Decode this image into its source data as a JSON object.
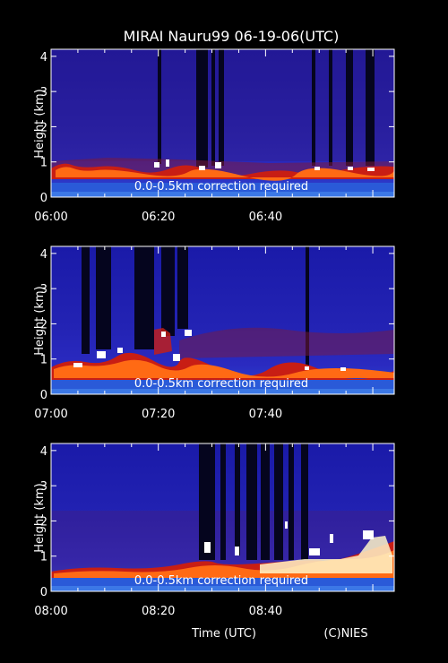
{
  "title": "MIRAI Nauru99 06-19-06(UTC)",
  "xlabel": "Time (UTC)",
  "credit": "(C)NIES",
  "chart_data": [
    {
      "type": "heatmap",
      "ylabel": "Height (km)",
      "yticks": [
        "0",
        "1",
        "2",
        "3",
        "4"
      ],
      "ylim": [
        0,
        4.2
      ],
      "xticks": [
        "06:00",
        "06:20",
        "06:40"
      ],
      "xlim_minutes": [
        0,
        64
      ],
      "annotation": "0.0-0.5km correction required"
    },
    {
      "type": "heatmap",
      "ylabel": "Height (km)",
      "yticks": [
        "0",
        "1",
        "2",
        "3",
        "4"
      ],
      "ylim": [
        0,
        4.2
      ],
      "xticks": [
        "07:00",
        "07:20",
        "07:40"
      ],
      "xlim_minutes": [
        0,
        64
      ],
      "annotation": "0.0-0.5km correction required"
    },
    {
      "type": "heatmap",
      "ylabel": "Height (km)",
      "yticks": [
        "0",
        "1",
        "2",
        "3",
        "4"
      ],
      "ylim": [
        0,
        4.2
      ],
      "xticks": [
        "08:00",
        "08:20",
        "08:40"
      ],
      "xlim_minutes": [
        0,
        64
      ],
      "annotation": "0.0-0.5km correction required"
    }
  ]
}
